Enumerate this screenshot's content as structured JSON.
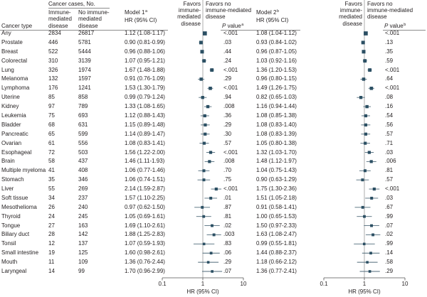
{
  "header": {
    "cases_group": "Cancer cases, No.",
    "cancer_type": "Cancer type",
    "immune_col": [
      "Immune-",
      "mediated",
      "disease"
    ],
    "no_immune_col": [
      "No immune-",
      "mediated",
      "disease"
    ],
    "model1": "Model 1",
    "model1_sup": "a",
    "model2": "Model 2",
    "model2_sup": "b",
    "hr_ci": "HR (95% CI)",
    "p_value": "P value",
    "p1_sup": "a",
    "p2_sup": "b",
    "favors_immune": [
      "Favors",
      "immune-",
      "mediated",
      "disease"
    ],
    "favors_no_immune": [
      "Favors no",
      "immune-mediated",
      "disease"
    ]
  },
  "colors": {
    "marker": "#2b4f63",
    "ci_line": "#4f6a79",
    "reference_line": "#9a9a9a",
    "axis": "#555555",
    "text": "#231f20"
  },
  "chart_data": {
    "type": "scatter",
    "subtype": "forest",
    "categories": [
      "Any",
      "Prostate",
      "Breast",
      "Colorectal",
      "Lung",
      "Melanoma",
      "Lymphoma",
      "Uterine",
      "Kidney",
      "Leukemia",
      "Bladder",
      "Pancreatic",
      "Ovarian",
      "Esophageal",
      "Brain",
      "Multiple myeloma",
      "Stomach",
      "Liver",
      "Soft tissue",
      "Mesothelioma",
      "Thyroid",
      "Tongue",
      "Biliary duct",
      "Tonsil",
      "Small intestine",
      "Mouth",
      "Laryngeal"
    ],
    "cases_immune": [
      2834,
      446,
      522,
      310,
      326,
      132,
      176,
      85,
      97,
      75,
      68,
      65,
      61,
      72,
      58,
      41,
      35,
      55,
      34,
      26,
      24,
      27,
      28,
      12,
      19,
      11,
      14
    ],
    "cases_no_immune": [
      26817,
      5781,
      5444,
      3139,
      1974,
      1597,
      1241,
      858,
      789,
      693,
      631,
      599,
      556,
      503,
      437,
      408,
      346,
      269,
      237,
      240,
      245,
      163,
      142,
      137,
      125,
      109,
      99
    ],
    "xlabel": "HR (95% CI)",
    "xscale": "log",
    "xlim": [
      0.1,
      10
    ],
    "xticks": [
      0.1,
      1,
      10
    ],
    "reference_line": 1,
    "grid": false,
    "series": [
      {
        "name": "Model 1",
        "hr": [
          1.12,
          0.9,
          0.96,
          1.07,
          1.67,
          0.91,
          1.53,
          0.99,
          1.33,
          1.12,
          1.15,
          1.14,
          1.08,
          1.56,
          1.46,
          1.06,
          1.06,
          2.14,
          1.57,
          0.97,
          1.05,
          1.69,
          1.88,
          1.07,
          1.6,
          1.36,
          1.7
        ],
        "ci_low": [
          1.08,
          0.81,
          0.88,
          0.95,
          1.48,
          0.76,
          1.3,
          0.79,
          1.08,
          0.88,
          0.89,
          0.89,
          0.83,
          1.22,
          1.11,
          0.77,
          0.74,
          1.59,
          1.1,
          0.62,
          0.69,
          1.1,
          1.25,
          0.59,
          0.98,
          0.76,
          0.96
        ],
        "ci_high": [
          1.17,
          0.99,
          1.06,
          1.21,
          1.88,
          1.09,
          1.79,
          1.24,
          1.65,
          1.43,
          1.48,
          1.47,
          1.41,
          2.0,
          1.93,
          1.46,
          1.51,
          2.87,
          2.25,
          1.5,
          1.61,
          2.61,
          2.83,
          1.93,
          2.61,
          2.44,
          2.99
        ],
        "hr_label": [
          "1.12 (1.08-1.17)",
          "0.90 (0.81-0.99)",
          "0.96 (0.88-1.06)",
          "1.07 (0.95-1.21)",
          "1.67 (1.48-1.88)",
          "0.91 (0.76-1.09)",
          "1.53 (1.30-1.79)",
          "0.99 (0.79-1.24)",
          "1.33 (1.08-1.65)",
          "1.12 (0.88-1.43)",
          "1.15 (0.89-1.48)",
          "1.14 (0.89-1.47)",
          "1.08 (0.83-1.41)",
          "1.56 (1.22-2.00)",
          "1.46 (1.11-1.93)",
          "1.06 (0.77-1.46)",
          "1.06 (0.74-1.51)",
          "2.14 (1.59-2.87)",
          "1.57 (1.10-2.25)",
          "0.97 (0.62-1.50)",
          "1.05 (0.69-1.61)",
          "1.69 (1.10-2.61)",
          "1.88 (1.25-2.83)",
          "1.07 (0.59-1.93)",
          "1.60 (0.98-2.61)",
          "1.36 (0.76-2.44)",
          "1.70 (0.96-2.99)"
        ],
        "p_value": [
          "<.001",
          ".03",
          ".44",
          ".24",
          "<.001",
          ".29",
          "<.001",
          ".94",
          ".008",
          ".36",
          ".29",
          ".30",
          ".57",
          "<.001",
          ".008",
          ".70",
          ".75",
          "<.001",
          ".01",
          ".87",
          ".81",
          ".02",
          ".003",
          ".83",
          ".06",
          ".29",
          ".07"
        ]
      },
      {
        "name": "Model 2",
        "hr": [
          1.08,
          0.93,
          0.96,
          1.03,
          1.36,
          0.96,
          1.49,
          0.82,
          1.16,
          1.08,
          1.08,
          1.08,
          1.05,
          1.32,
          1.48,
          1.04,
          0.9,
          1.75,
          1.51,
          0.91,
          1.0,
          1.5,
          1.63,
          0.99,
          1.44,
          1.18,
          1.36
        ],
        "ci_low": [
          1.04,
          0.84,
          0.87,
          0.92,
          1.2,
          0.8,
          1.26,
          0.65,
          0.94,
          0.85,
          0.83,
          0.83,
          0.8,
          1.03,
          1.12,
          0.75,
          0.63,
          1.3,
          1.05,
          0.58,
          0.65,
          0.97,
          1.08,
          0.55,
          0.88,
          0.66,
          0.77
        ],
        "ci_high": [
          1.12,
          1.02,
          1.05,
          1.16,
          1.53,
          1.15,
          1.75,
          1.03,
          1.44,
          1.38,
          1.4,
          1.39,
          1.38,
          1.7,
          1.97,
          1.43,
          1.29,
          2.36,
          2.18,
          1.41,
          1.53,
          2.33,
          2.47,
          1.81,
          2.37,
          2.12,
          2.41
        ],
        "hr_label": [
          "1.08 (1.04-1.12)",
          "0.93 (0.84-1.02)",
          "0.96 (0.87-1.05)",
          "1.03 (0.92-1.16)",
          "1.36 (1.20-1.53)",
          "0.96 (0.80-1.15)",
          "1.49 (1.26-1.75)",
          "0.82 (0.65-1.03)",
          "1.16 (0.94-1.44)",
          "1.08 (0.85-1.38)",
          "1.08 (0.83-1.40)",
          "1.08 (0.83-1.39)",
          "1.05 (0.80-1.38)",
          "1.32 (1.03-1.70)",
          "1.48 (1.12-1.97)",
          "1.04 (0.75-1.43)",
          "0.90 (0.63-1.29)",
          "1.75 (1.30-2.36)",
          "1.51 (1.05-2.18)",
          "0.91 (0.58-1.41)",
          "1.00 (0.65-1.53)",
          "1.50 (0.97-2.33)",
          "1.63 (1.08-2.47)",
          "0.99 (0.55-1.81)",
          "1.44 (0.88-2.37)",
          "1.18 (0.66-2.12)",
          "1.36 (0.77-2.41)"
        ],
        "p_value": [
          "<.001",
          ".13",
          ".35",
          ".59",
          "<.001",
          ".64",
          "<.001",
          ".08",
          ".16",
          ".54",
          ".56",
          ".57",
          ".71",
          ".03",
          ".006",
          ".81",
          ".57",
          "<.001",
          ".03",
          ".67",
          ".99",
          ".07",
          ".02",
          ".99",
          ".14",
          ".58",
          ".29"
        ]
      }
    ]
  }
}
